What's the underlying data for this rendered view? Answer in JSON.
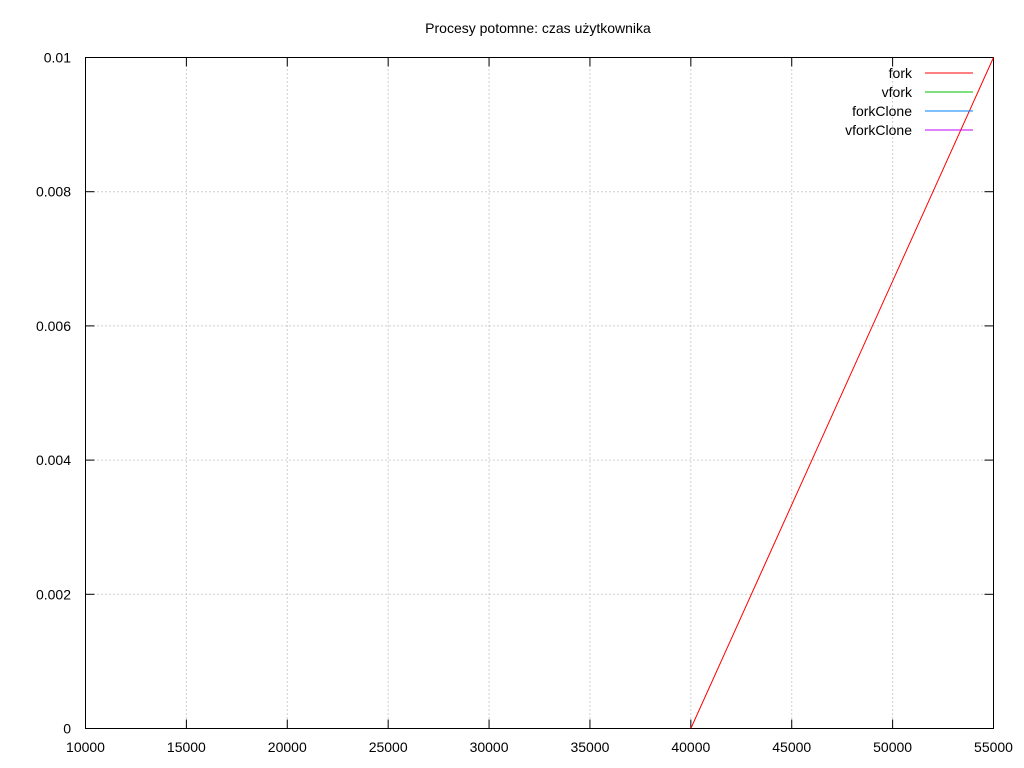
{
  "chart_data": {
    "type": "line",
    "title": "Procesy potomne: czas użytkownika",
    "xlabel": "",
    "ylabel": "",
    "xlim": [
      10000,
      55000
    ],
    "ylim": [
      0,
      0.01
    ],
    "x_ticks": [
      10000,
      15000,
      20000,
      25000,
      30000,
      35000,
      40000,
      45000,
      50000,
      55000
    ],
    "y_ticks": [
      0,
      0.002,
      0.004,
      0.006,
      0.008,
      0.01
    ],
    "y_tick_labels": [
      "0",
      "0.002",
      "0.004",
      "0.006",
      "0.008",
      "0.01"
    ],
    "grid": true,
    "legend_position": "top-right",
    "series": [
      {
        "name": "fork",
        "color": "#ff0000",
        "points": [
          [
            40000,
            0
          ],
          [
            55000,
            0.01
          ]
        ]
      },
      {
        "name": "vfork",
        "color": "#00c000",
        "points": []
      },
      {
        "name": "forkClone",
        "color": "#0080ff",
        "points": []
      },
      {
        "name": "vforkClone",
        "color": "#c000ff",
        "points": []
      }
    ]
  }
}
